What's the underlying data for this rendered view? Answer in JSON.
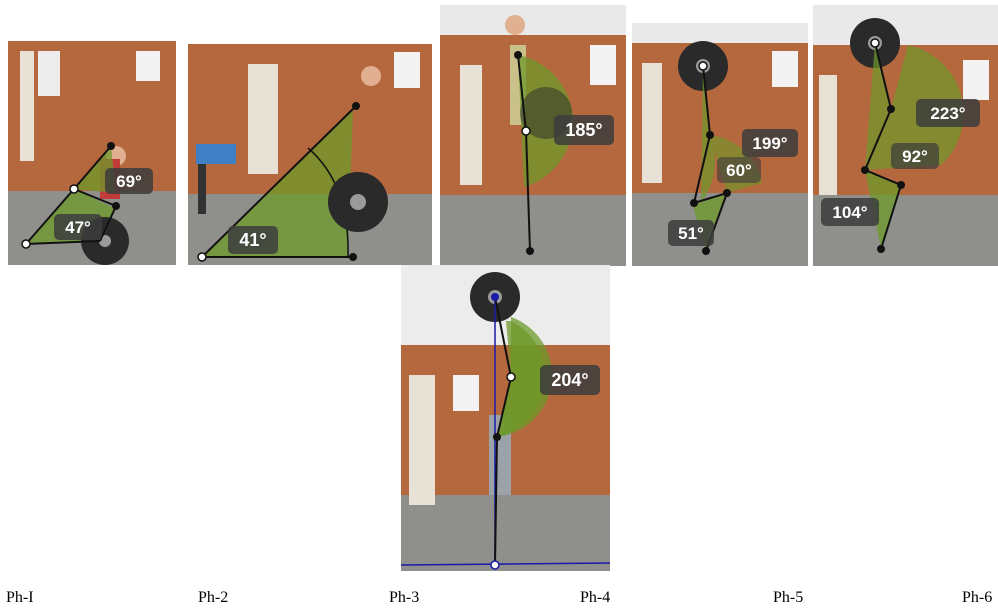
{
  "colors": {
    "wall": "#b5673e",
    "floor": "#8f8f8c",
    "angle_fill": "#6d9a2a",
    "skeleton": "#111111",
    "plumb_line": "#1a1aa8",
    "label_bg": "#3c3c3c"
  },
  "panels": [
    {
      "name": "Ph-I",
      "angles": [
        "69°",
        "47°"
      ]
    },
    {
      "name": "Ph-2",
      "angles": [
        "41°"
      ]
    },
    {
      "name": "Ph-3",
      "angles": [
        "185°"
      ]
    },
    {
      "name": "Ph-4",
      "angles": [
        "199°",
        "60°",
        "51°"
      ]
    },
    {
      "name": "Ph-5",
      "angles": [
        "223°",
        "92°",
        "104°"
      ]
    },
    {
      "name": "Ph-6",
      "angles": [
        "204°"
      ]
    }
  ],
  "captions": [
    "Ph-I",
    "Ph-2",
    "Ph-3",
    "Ph-4",
    "Ph-5",
    "Ph-6"
  ]
}
